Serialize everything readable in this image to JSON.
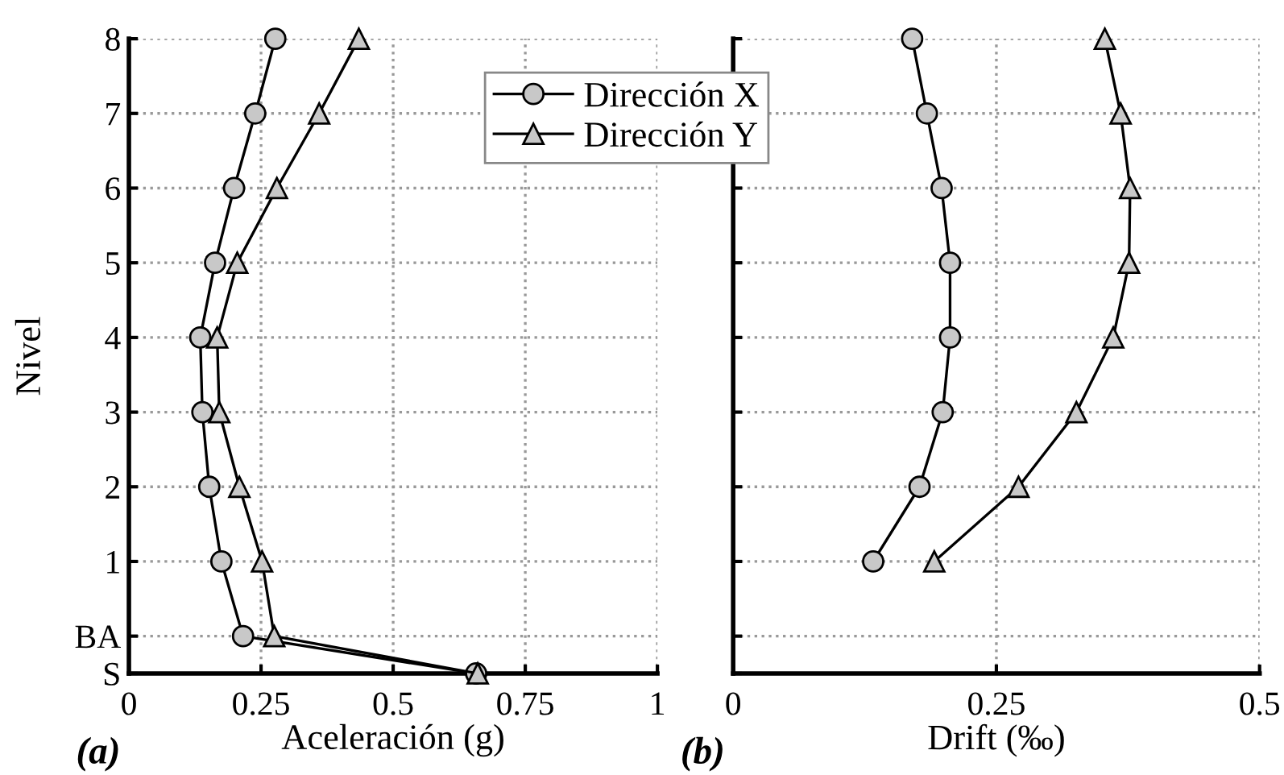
{
  "chart_data": [
    {
      "type": "line",
      "xlabel": "Aceleración (g)",
      "ylabel": "Nivel",
      "annotations": [
        "(a)"
      ],
      "xlim": [
        0,
        1
      ],
      "xticks": [
        0,
        0.25,
        0.5,
        0.75,
        1
      ],
      "ylim": [
        -0.5,
        8
      ],
      "yticks": [
        {
          "value": -0.5,
          "label": "S"
        },
        {
          "value": 0,
          "label": "BA"
        },
        1,
        2,
        3,
        4,
        5,
        6,
        7,
        8
      ],
      "grid": true,
      "legend": "top right",
      "line_style": "solid",
      "series": [
        {
          "name": "Dirección X",
          "color": "#c8c8c8",
          "marker": "circle",
          "x": [
            0.657,
            0.216,
            0.175,
            0.152,
            0.139,
            0.135,
            0.163,
            0.199,
            0.239,
            0.277
          ],
          "values": [
            -0.5,
            0,
            1,
            2,
            3,
            4,
            5,
            6,
            7,
            8
          ]
        },
        {
          "name": "Dirección Y",
          "color": "#c8c8c8",
          "marker": "triangle",
          "x": [
            0.66,
            0.275,
            0.252,
            0.209,
            0.171,
            0.167,
            0.205,
            0.28,
            0.36,
            0.435
          ],
          "values": [
            -0.5,
            0,
            1,
            2,
            3,
            4,
            5,
            6,
            7,
            8
          ]
        }
      ]
    },
    {
      "type": "line",
      "xlabel": "Drift (‰)",
      "annotations": [
        "(b)"
      ],
      "xlim": [
        0,
        0.5
      ],
      "xticks": [
        0,
        0.25,
        0.5
      ],
      "ylim": [
        -0.5,
        8
      ],
      "yticks": [
        {
          "value": -0.5,
          "label": null
        },
        {
          "value": 0,
          "label": null
        },
        {
          "value": 1,
          "label": null
        },
        {
          "value": 2,
          "label": null
        },
        {
          "value": 3,
          "label": null
        },
        {
          "value": 4,
          "label": null
        },
        {
          "value": 5,
          "label": null
        },
        {
          "value": 6,
          "label": null
        },
        {
          "value": 7,
          "label": null
        },
        {
          "value": 8,
          "label": null
        }
      ],
      "tick_labels": "x",
      "grid": true,
      "line_style": "solid",
      "series": [
        {
          "color": "#c8c8c8",
          "marker": "circle",
          "x": [
            0.133,
            0.177,
            0.199,
            0.206,
            0.206,
            0.198,
            0.184,
            0.17
          ],
          "values": [
            1,
            2,
            3,
            4,
            5,
            6,
            7,
            8
          ]
        },
        {
          "color": "#c8c8c8",
          "marker": "triangle",
          "x": [
            0.191,
            0.271,
            0.326,
            0.361,
            0.376,
            0.377,
            0.368,
            0.353
          ],
          "values": [
            1,
            2,
            3,
            4,
            5,
            6,
            7,
            8
          ]
        }
      ]
    }
  ]
}
